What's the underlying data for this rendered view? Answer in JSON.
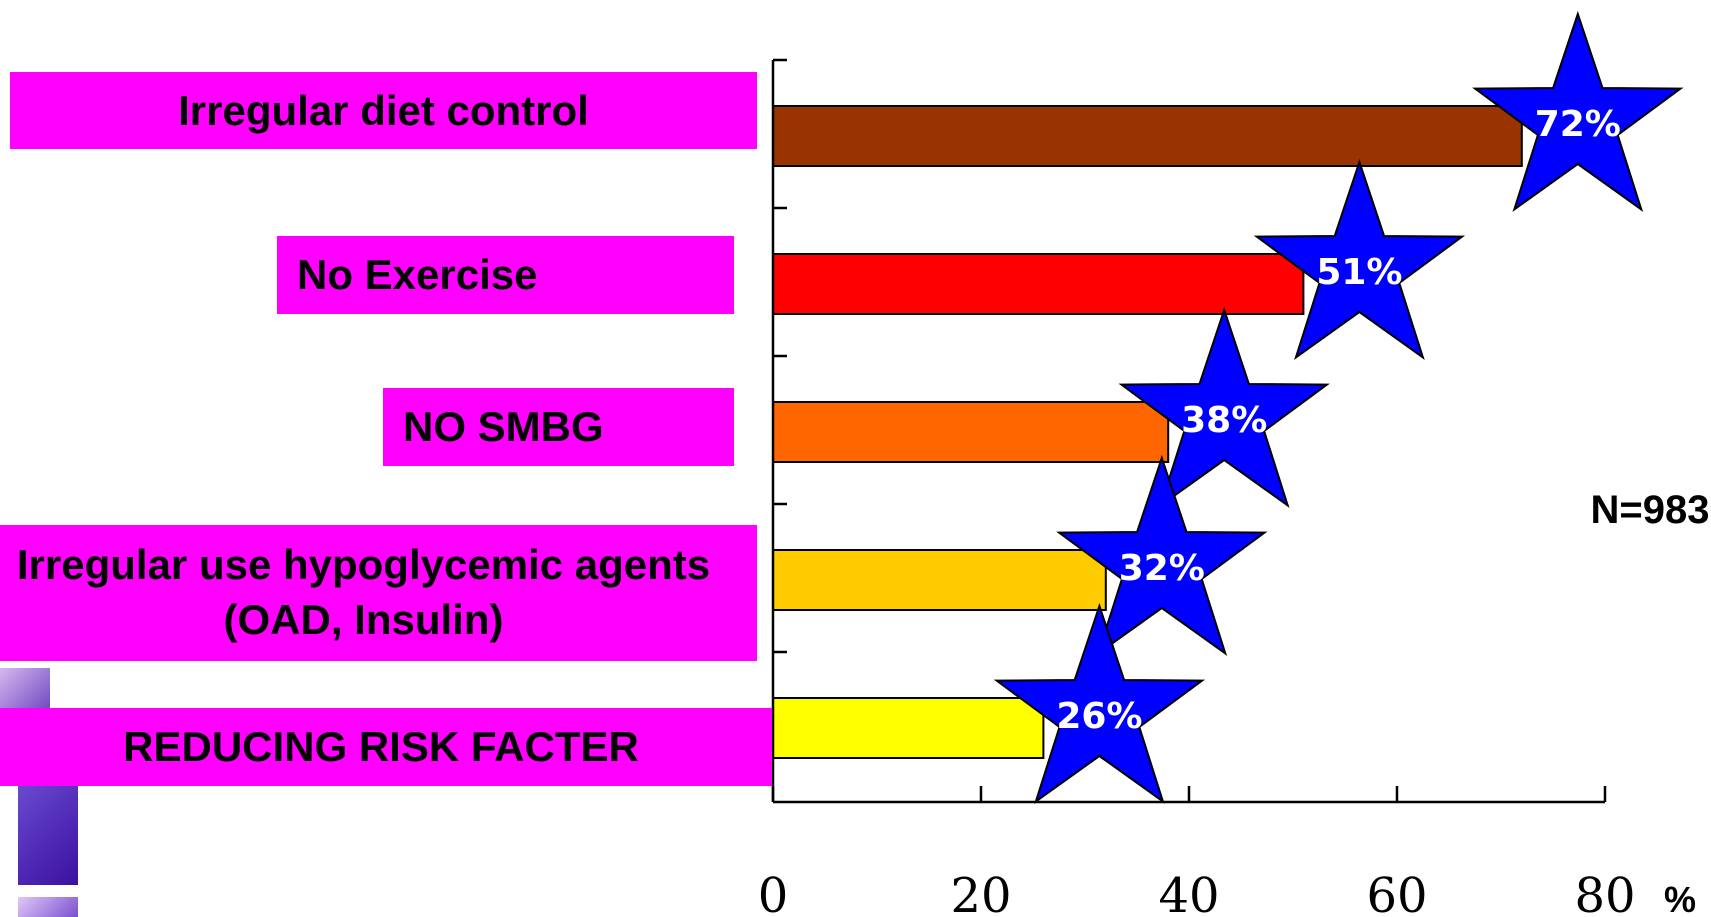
{
  "chart_data": {
    "type": "bar",
    "orientation": "horizontal",
    "categories": [
      "Irregular diet control",
      "No Exercise",
      "NO SMBG",
      "Irregular use hypoglycemic agents (OAD, Insulin)",
      "REDUCING RISK FACTER"
    ],
    "values": [
      72,
      51,
      38,
      32,
      26
    ],
    "value_labels": [
      "72%",
      "51%",
      "38%",
      "32%",
      "26%"
    ],
    "bar_colors": [
      "#993300",
      "#ff0000",
      "#ff6600",
      "#ffcc00",
      "#ffff00"
    ],
    "label_box_color": "#ff00ff",
    "marker_color": "#0000ff",
    "xlim": [
      0,
      80
    ],
    "x_ticks": [
      "0",
      "20",
      "40",
      "60",
      "80"
    ],
    "xlabel": "%",
    "annotation": "N=983",
    "grid": false
  }
}
